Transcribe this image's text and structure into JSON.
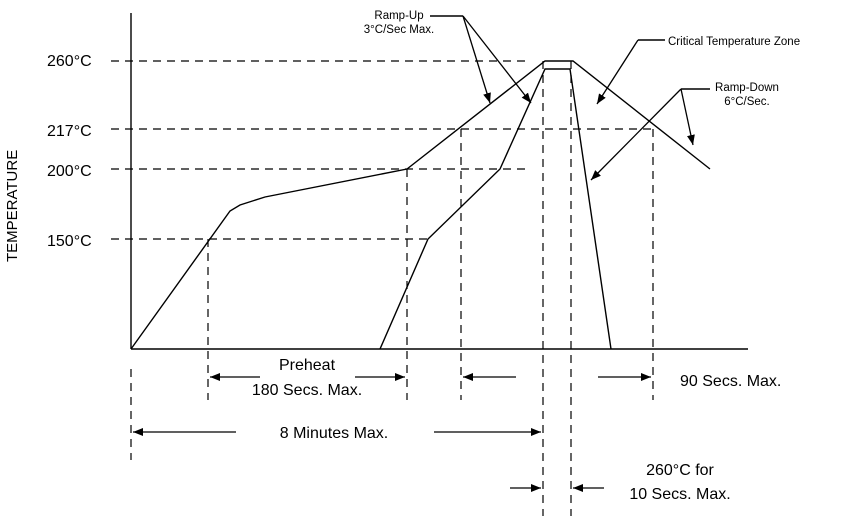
{
  "y_axis": {
    "title": "TEMPERATURE",
    "ticks": [
      "260°C",
      "217°C",
      "200°C",
      "150°C"
    ]
  },
  "annotations": {
    "ramp_up_line1": "Ramp-Up",
    "ramp_up_line2": "3°C/Sec Max.",
    "critical_zone": "Critical Temperature Zone",
    "ramp_down_line1": "Ramp-Down",
    "ramp_down_line2": "6°C/Sec."
  },
  "dimensions": {
    "preheat_line1": "Preheat",
    "preheat_line2": "180 Secs. Max.",
    "ninety": "90 Secs. Max.",
    "eight_min": "8 Minutes Max.",
    "peak_line1": "260°C for",
    "peak_line2": "10 Secs. Max."
  }
}
